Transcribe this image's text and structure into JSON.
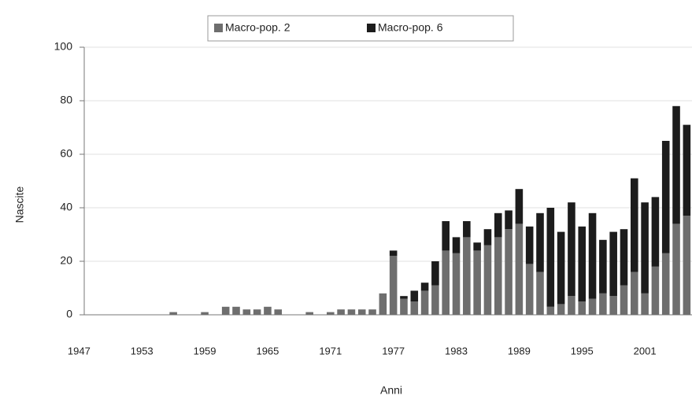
{
  "chart_data": {
    "type": "stacked-bar",
    "x_label": "Anni",
    "y_label": "Nascite",
    "categories": [
      "1947",
      null,
      null,
      null,
      null,
      null,
      "1953",
      null,
      null,
      null,
      null,
      null,
      "1959",
      null,
      null,
      null,
      null,
      null,
      "1965",
      null,
      null,
      null,
      null,
      null,
      "1971",
      null,
      null,
      null,
      null,
      null,
      "1977",
      null,
      null,
      null,
      null,
      null,
      "1983",
      null,
      null,
      null,
      null,
      null,
      "1989",
      null,
      null,
      null,
      null,
      null,
      "1995",
      null,
      null,
      null,
      null,
      null,
      "2001",
      null,
      null,
      null
    ],
    "series": [
      {
        "name": "Macro-pop. 2",
        "color": "#6e6e6e",
        "values": [
          0,
          0,
          0,
          0,
          0,
          0,
          0,
          0,
          1,
          0,
          0,
          1,
          0,
          3,
          3,
          2,
          2,
          3,
          2,
          0,
          0,
          1,
          0,
          1,
          2,
          2,
          2,
          2,
          8,
          22,
          6,
          5,
          9,
          11,
          24,
          23,
          29,
          24,
          26,
          29,
          32,
          34,
          19,
          16,
          3,
          4,
          7,
          5,
          6,
          8,
          7,
          11,
          16,
          8,
          18,
          23,
          34,
          37
        ]
      },
      {
        "name": "Macro-pop. 6",
        "color": "#1c1c1c",
        "values": [
          0,
          0,
          0,
          0,
          0,
          0,
          0,
          0,
          0,
          0,
          0,
          0,
          0,
          0,
          0,
          0,
          0,
          0,
          0,
          0,
          0,
          0,
          0,
          0,
          0,
          0,
          0,
          0,
          0,
          2,
          1,
          4,
          3,
          9,
          11,
          6,
          6,
          3,
          6,
          9,
          7,
          13,
          14,
          22,
          37,
          27,
          35,
          28,
          32,
          20,
          24,
          21,
          35,
          34,
          26,
          42,
          44,
          34
        ]
      }
    ],
    "ylim": [
      0,
      100
    ],
    "yticks": [
      0,
      20,
      40,
      60,
      80,
      100
    ],
    "grid": true,
    "legend": "top"
  }
}
